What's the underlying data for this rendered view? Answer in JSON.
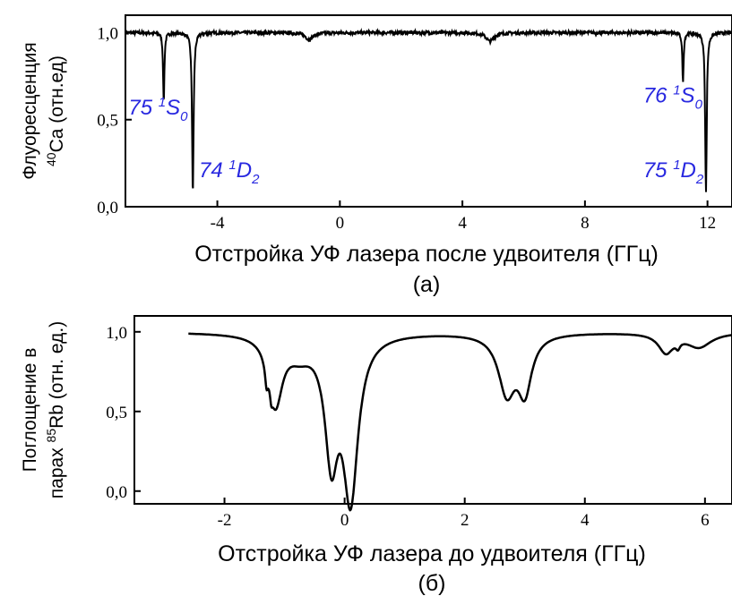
{
  "chart_data": [
    {
      "type": "line",
      "panel_label": "(а)",
      "xlabel": "Отстройка УФ лазера после удвоителя (ГГц)",
      "ylabel_line1": "Флуоресценция",
      "ylabel_line2_sup": "40",
      "ylabel_line2_main": "Ca (отн.ед)",
      "xlim": [
        -7,
        12.8
      ],
      "ylim": [
        0,
        1.1
      ],
      "xticks": [
        -4,
        0,
        4,
        8,
        12
      ],
      "xtick_labels": [
        "-4",
        "0",
        "4",
        "8",
        "12"
      ],
      "yticks": [
        0,
        0.5,
        1.0
      ],
      "ytick_labels": [
        "0,0",
        "0,5",
        "1,0"
      ],
      "grid": false,
      "baseline": 1.0,
      "dips": [
        {
          "x": -5.75,
          "depth": 0.41,
          "width": 0.025
        },
        {
          "x": -4.8,
          "depth": 0.94,
          "width": 0.03
        },
        {
          "x": -1.0,
          "depth": 0.04,
          "width": 0.15
        },
        {
          "x": 4.9,
          "depth": 0.05,
          "width": 0.15
        },
        {
          "x": 11.2,
          "depth": 0.29,
          "width": 0.025
        },
        {
          "x": 11.95,
          "depth": 0.92,
          "width": 0.03
        }
      ],
      "annotations": [
        {
          "main": "75",
          "sup": "1",
          "state": "S",
          "sub": "0",
          "x": -6.9,
          "y": 0.53
        },
        {
          "main": "74",
          "sup": "1",
          "state": "D",
          "sub": "2",
          "x": -4.6,
          "y": 0.17
        },
        {
          "main": "76",
          "sup": "1",
          "state": "S",
          "sub": "0",
          "x": 9.9,
          "y": 0.6
        },
        {
          "main": "75",
          "sup": "1",
          "state": "D",
          "sub": "2",
          "x": 9.9,
          "y": 0.17
        }
      ]
    },
    {
      "type": "line",
      "panel_label": "(б)",
      "xlabel": "Отстройка УФ лазера до удвоителя (ГГц)",
      "ylabel_line1": "Поглощение в",
      "ylabel_line2_pre": "парах ",
      "ylabel_line2_sup": "85",
      "ylabel_line2_main": "Rb (отн. ед.)",
      "xlim": [
        -3.5,
        6.45
      ],
      "ylim": [
        -0.08,
        1.1
      ],
      "xticks": [
        -2,
        0,
        2,
        4,
        6
      ],
      "xtick_labels": [
        "-2",
        "0",
        "2",
        "4",
        "6"
      ],
      "yticks": [
        0,
        0.5,
        1.0
      ],
      "ytick_labels": [
        "0,0",
        "0,5",
        "1,0"
      ],
      "grid": false,
      "x_range": [
        -2.6,
        6.45
      ],
      "baseline": 1.0,
      "components": [
        {
          "x": -1.15,
          "depth": 0.42,
          "width": 0.14
        },
        {
          "x": -1.3,
          "depth": 0.12,
          "width": 0.03
        },
        {
          "x": -1.22,
          "depth": 0.07,
          "width": 0.025
        },
        {
          "x": -0.75,
          "depth": 0.1,
          "width": 0.25
        },
        {
          "x": -0.22,
          "depth": 0.72,
          "width": 0.13
        },
        {
          "x": 0.1,
          "depth": 1.0,
          "width": 0.15
        },
        {
          "x": 2.7,
          "depth": 0.36,
          "width": 0.17
        },
        {
          "x": 3.0,
          "depth": 0.34,
          "width": 0.14
        },
        {
          "x": 5.35,
          "depth": 0.12,
          "width": 0.15
        },
        {
          "x": 5.9,
          "depth": 0.09,
          "width": 0.25
        },
        {
          "x": 5.55,
          "depth": 0.04,
          "width": 0.04
        }
      ]
    }
  ]
}
